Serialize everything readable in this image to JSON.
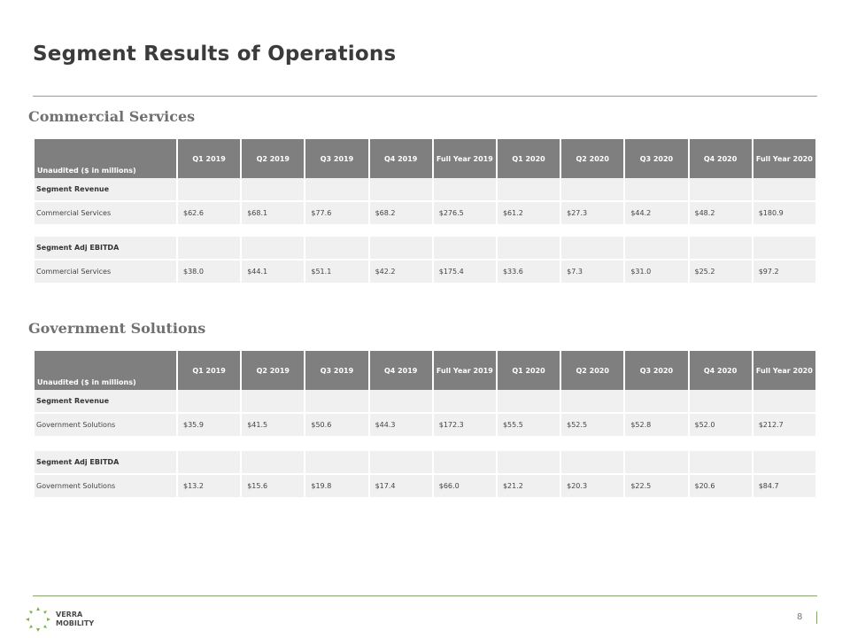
{
  "slide": {
    "title": "Segment Results of Operations",
    "page_number": "8",
    "logo_line1": "VERRA",
    "logo_line2": "MOBILITY",
    "brand_color": "#7cb342"
  },
  "columns": [
    "Unaudited ($ in millions)",
    "Q1 2019",
    "Q2 2019",
    "Q3 2019",
    "Q4 2019",
    "Full Year 2019",
    "Q1 2020",
    "Q2 2020",
    "Q3 2020",
    "Q4 2020",
    "Full Year 2020"
  ],
  "commercial": {
    "heading": "Commercial  Services",
    "revenue_label": "Segment Revenue",
    "revenue_row": [
      "Commercial Services",
      "$62.6",
      "$68.1",
      "$77.6",
      "$68.2",
      "$276.5",
      "$61.2",
      "$27.3",
      "$44.2",
      "$48.2",
      "$180.9"
    ],
    "ebitda_label": "Segment Adj EBITDA",
    "ebitda_row": [
      "Commercial Services",
      "$38.0",
      "$44.1",
      "$51.1",
      "$42.2",
      "$175.4",
      "$33.6",
      "$7.3",
      "$31.0",
      "$25.2",
      "$97.2"
    ]
  },
  "government": {
    "heading": "Government Solutions",
    "revenue_label": "Segment Revenue",
    "revenue_row": [
      "Government Solutions",
      "$35.9",
      "$41.5",
      "$50.6",
      "$44.3",
      "$172.3",
      "$55.5",
      "$52.5",
      "$52.8",
      "$52.0",
      "$212.7"
    ],
    "ebitda_label": "Segment Adj EBITDA",
    "ebitda_row": [
      "Government Solutions",
      "$13.2",
      "$15.6",
      "$19.8",
      "$17.4",
      "$66.0",
      "$21.2",
      "$20.3",
      "$22.5",
      "$20.6",
      "$84.7"
    ]
  }
}
